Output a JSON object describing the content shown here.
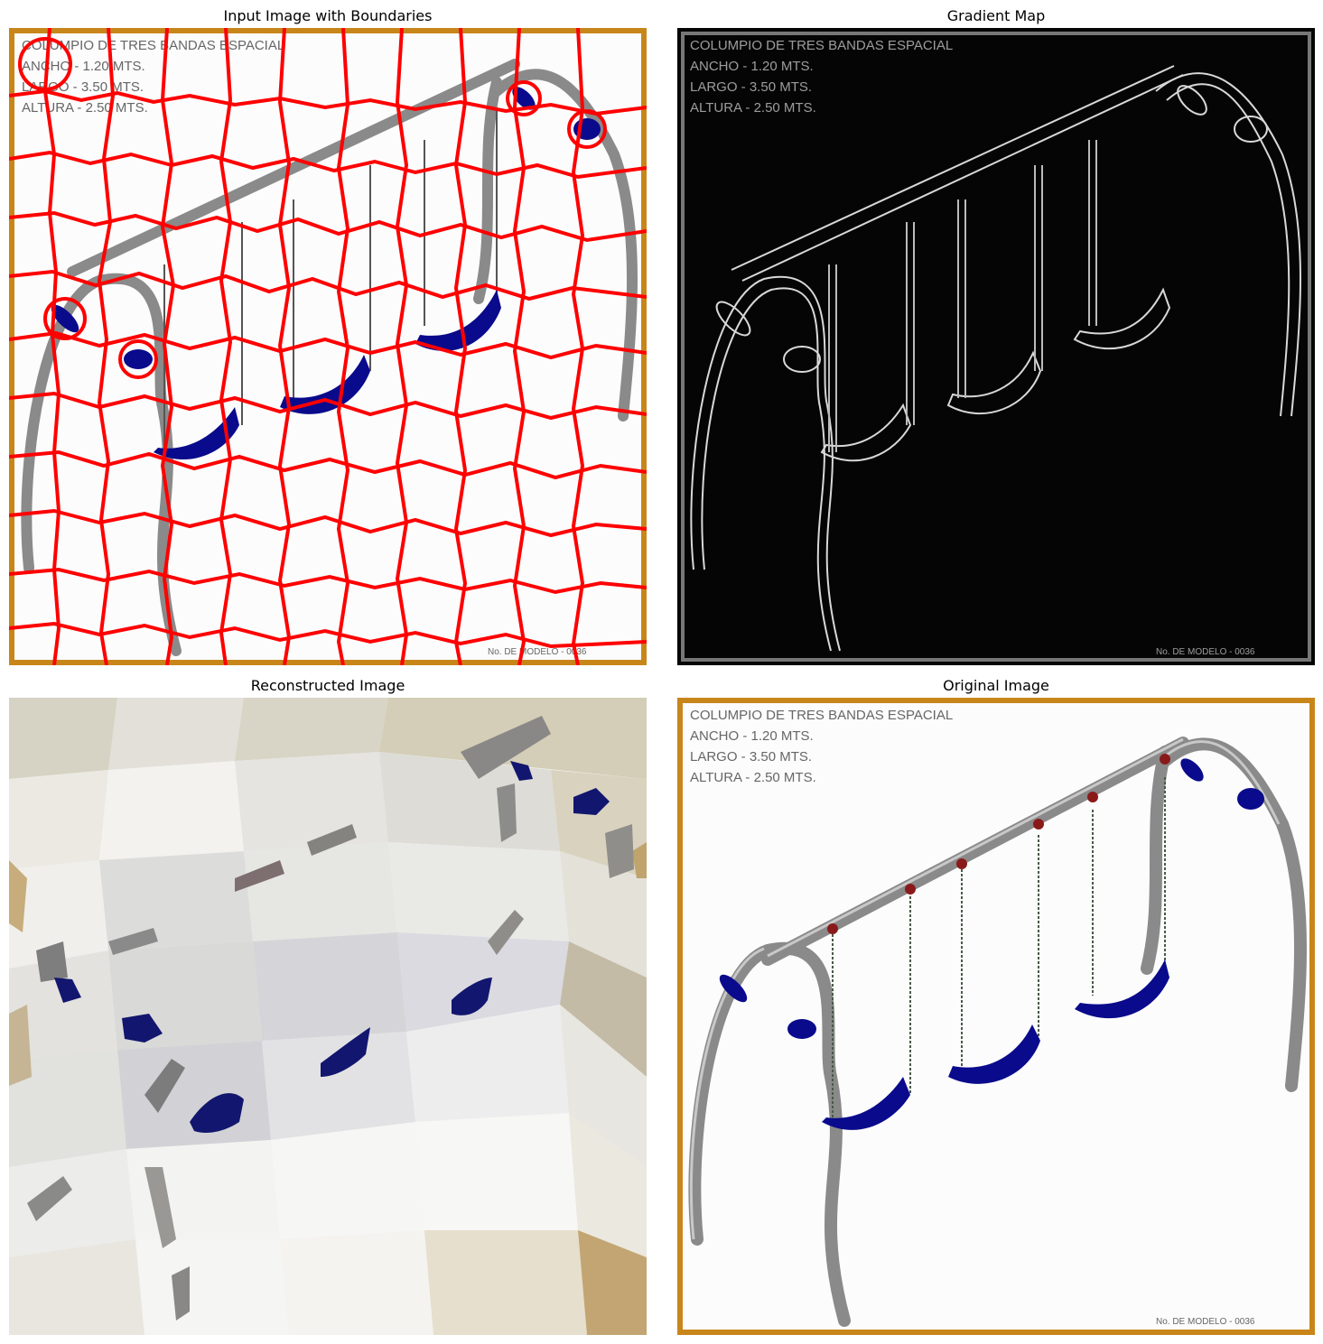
{
  "titles": {
    "boundaries": "Input Image with Boundaries",
    "gradient": "Gradient Map",
    "reconstructed": "Reconstructed Image",
    "original": "Original Image"
  },
  "drawing_text": {
    "line1": "COLUMPIO DE TRES BANDAS ESPACIAL",
    "line2": "ANCHO - 1.20 MTS.",
    "line3": "LARGO - 3.50 MTS.",
    "line4": "ALTURA - 2.50 MTS.",
    "model": "No. DE MODELO - 0036"
  },
  "colors": {
    "frame": "#c8861a",
    "boundary": "#ff0000",
    "seat": "#0a0a8c",
    "tube": "#8a8a8a",
    "gradient_bg": "#050505"
  }
}
